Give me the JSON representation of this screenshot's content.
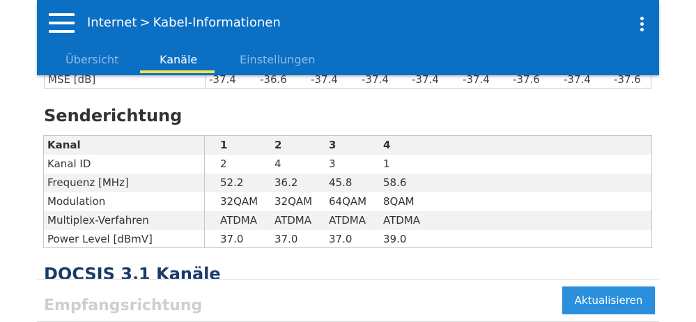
{
  "header": {
    "breadcrumb": {
      "parent": "Internet",
      "separator": ">",
      "current": "Kabel-Informationen"
    },
    "tabs": [
      {
        "label": "Übersicht",
        "active": false
      },
      {
        "label": "Kanäle",
        "active": true
      },
      {
        "label": "Einstellungen",
        "active": false
      }
    ],
    "colors": {
      "background": "#0b6fc4",
      "active_tab_underline": "#f6e64a"
    }
  },
  "mse_row": {
    "label": "MSE [dB]",
    "values": [
      "-37.4",
      "-36.6",
      "-37.4",
      "-37.4",
      "-37.4",
      "-37.4",
      "-37.6",
      "-37.4",
      "-37.6"
    ]
  },
  "sections": {
    "send_title": "Senderichtung",
    "docsis_title": "DOCSIS 3.1 Kanäle",
    "empfang_title": "Empfangsrichtung"
  },
  "send_table": {
    "header": {
      "label": "Kanal",
      "values": [
        "1",
        "2",
        "3",
        "4"
      ]
    },
    "rows": [
      {
        "label": "Kanal ID",
        "values": [
          "2",
          "4",
          "3",
          "1"
        ]
      },
      {
        "label": "Frequenz [MHz]",
        "values": [
          "52.2",
          "36.2",
          "45.8",
          "58.6"
        ]
      },
      {
        "label": "Modulation",
        "values": [
          "32QAM",
          "32QAM",
          "64QAM",
          "8QAM"
        ]
      },
      {
        "label": "Multiplex-Verfahren",
        "values": [
          "ATDMA",
          "ATDMA",
          "ATDMA",
          "ATDMA"
        ]
      },
      {
        "label": "Power Level [dBmV]",
        "values": [
          "37.0",
          "37.0",
          "37.0",
          "39.0"
        ]
      }
    ]
  },
  "actions": {
    "refresh_label": "Aktualisieren",
    "refresh_color": "#2a8fdd"
  }
}
